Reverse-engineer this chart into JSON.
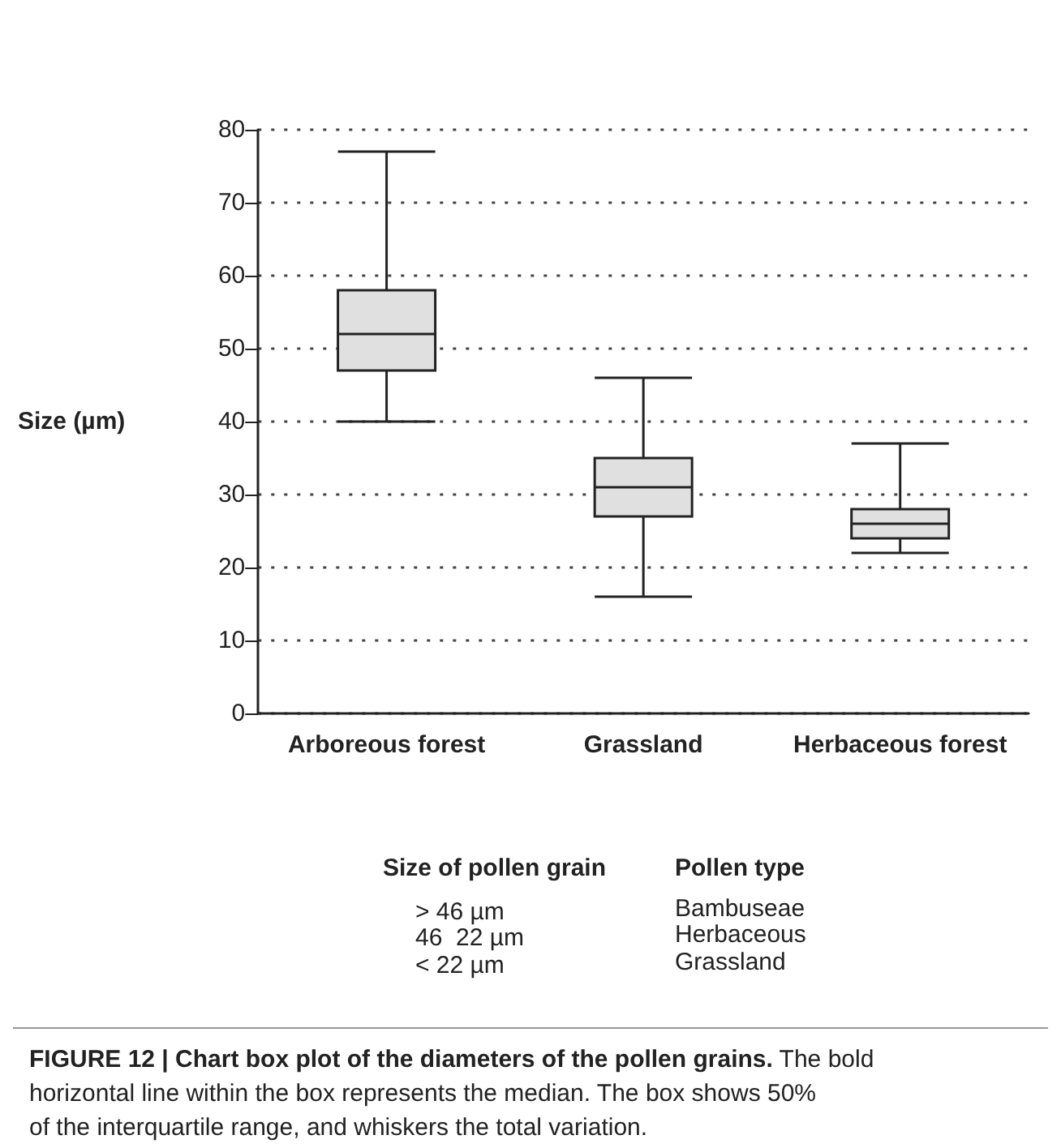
{
  "chart_data": {
    "type": "box",
    "ylabel": "Size (µm)",
    "categories": [
      "Arboreous forest",
      "Grassland",
      "Herbaceous forest"
    ],
    "boxes": [
      {
        "low": 40,
        "q1": 47,
        "median": 52,
        "q3": 58,
        "high": 77
      },
      {
        "low": 16,
        "q1": 27,
        "median": 31,
        "q3": 35,
        "high": 46
      },
      {
        "low": 22,
        "q1": 24,
        "median": 26,
        "q3": 28,
        "high": 37
      }
    ],
    "color": "#e0e0e0",
    "ylim": [
      0,
      80
    ],
    "yticks": [
      0,
      10,
      20,
      30,
      40,
      50,
      60,
      70,
      80
    ],
    "grid": "y",
    "annotations": [
      "Size of pollen grain",
      "Pollen type",
      "> 46 µm",
      "Bambuseae",
      "46  22 µm",
      "Herbaceous",
      "< 22 µm",
      "Grassland",
      "FIGURE 12 | Chart box plot of the diameters of the pollen grains.",
      "The bold horizontal line within the box represents the median. The box shows 50% of the interquartile range, and whiskers the total variation."
    ]
  }
}
